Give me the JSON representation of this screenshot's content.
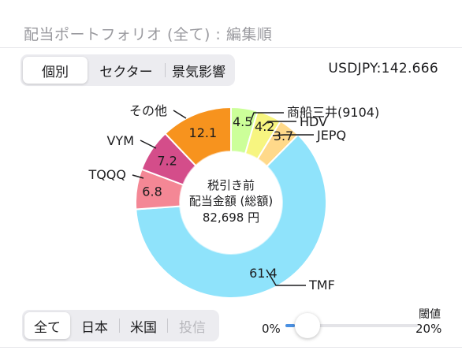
{
  "header": {
    "title": "配当ポートフォリオ (全て) : 編集順"
  },
  "view_tabs": [
    {
      "label": "個別",
      "active": true
    },
    {
      "label": "セクター",
      "active": false
    },
    {
      "label": "景気影響",
      "active": false
    }
  ],
  "fx_rate": "USDJPY:142.666",
  "center": {
    "line1": "税引き前",
    "line2": "配当金額 (総額)",
    "line3": "82,698 円"
  },
  "market_tabs": [
    {
      "label": "全て",
      "active": true,
      "enabled": true
    },
    {
      "label": "日本",
      "active": false,
      "enabled": true
    },
    {
      "label": "米国",
      "active": false,
      "enabled": true
    },
    {
      "label": "投信",
      "active": false,
      "enabled": false
    }
  ],
  "threshold": {
    "label": "閾値",
    "min_label": "0%",
    "max_label": "20%",
    "value": 0
  },
  "colors": {
    "accent": "#4a90e2"
  },
  "chart_data": {
    "type": "pie",
    "title": "",
    "slices": [
      {
        "name": "商船三井(9104)",
        "value": 4.5,
        "color": "#ccff99"
      },
      {
        "name": "HDV",
        "value": 4.2,
        "color": "#f7f580"
      },
      {
        "name": "JEPQ",
        "value": 3.7,
        "color": "#ffd98a"
      },
      {
        "name": "TMF",
        "value": 61.4,
        "color": "#8fe3fb"
      },
      {
        "name": "TQQQ",
        "value": 6.8,
        "color": "#f48795"
      },
      {
        "name": "VYM",
        "value": 7.2,
        "color": "#d44d8a"
      },
      {
        "name": "その他",
        "value": 12.1,
        "color": "#f7931e"
      }
    ]
  }
}
